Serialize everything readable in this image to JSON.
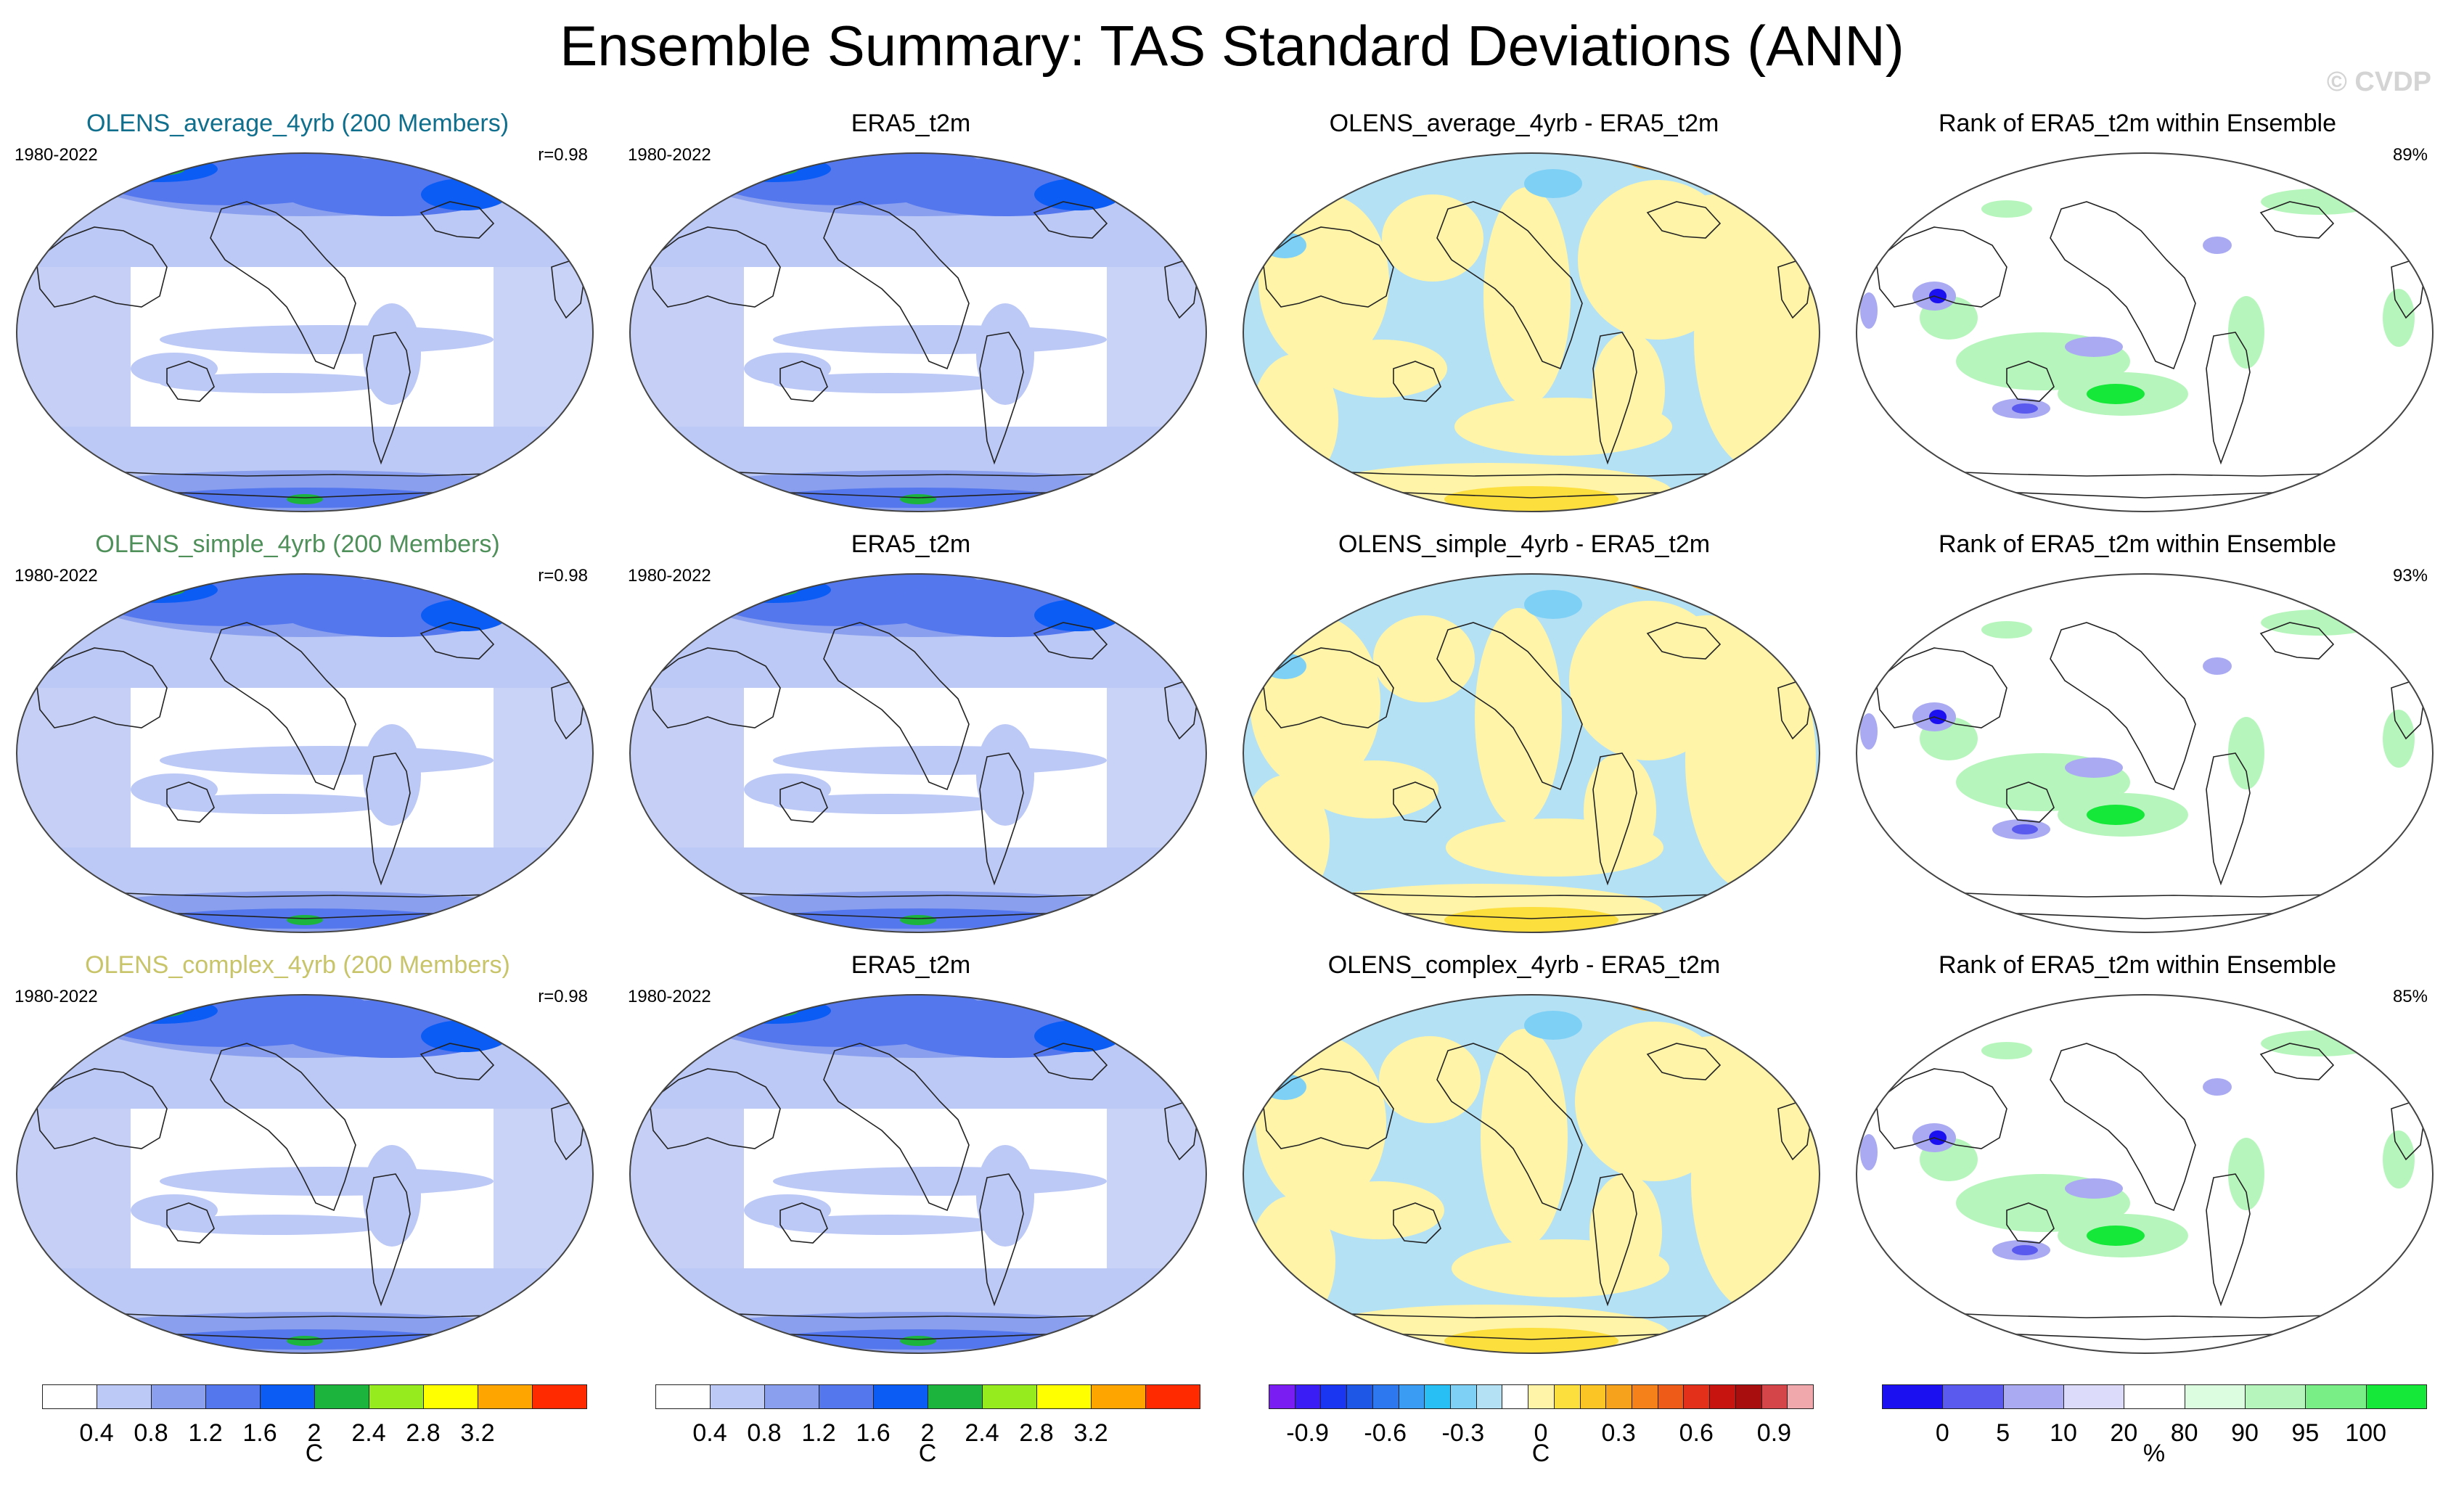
{
  "title": "Ensemble Summary: TAS Standard Deviations (ANN)",
  "watermark": "© CVDP",
  "rows": [
    {
      "label_color": "#106f8c",
      "panels": [
        {
          "kind": "std",
          "title": "OLENS_average_4yrb (200 Members)",
          "left": "1980-2022",
          "right": "r=0.98"
        },
        {
          "kind": "std",
          "title": "ERA5_t2m",
          "left": "1980-2022",
          "right": ""
        },
        {
          "kind": "diff",
          "title": "OLENS_average_4yrb - ERA5_t2m",
          "left": "",
          "right": ""
        },
        {
          "kind": "rank",
          "title": "Rank of ERA5_t2m within Ensemble",
          "left": "",
          "right": "89%"
        }
      ]
    },
    {
      "label_color": "#4f8f5a",
      "panels": [
        {
          "kind": "std",
          "title": "OLENS_simple_4yrb (200 Members)",
          "left": "1980-2022",
          "right": "r=0.98"
        },
        {
          "kind": "std",
          "title": "ERA5_t2m",
          "left": "1980-2022",
          "right": ""
        },
        {
          "kind": "diff",
          "title": "OLENS_simple_4yrb - ERA5_t2m",
          "left": "",
          "right": ""
        },
        {
          "kind": "rank",
          "title": "Rank of ERA5_t2m within Ensemble",
          "left": "",
          "right": "93%"
        }
      ]
    },
    {
      "label_color": "#c8c46a",
      "panels": [
        {
          "kind": "std",
          "title": "OLENS_complex_4yrb (200 Members)",
          "left": "1980-2022",
          "right": "r=0.98"
        },
        {
          "kind": "std",
          "title": "ERA5_t2m",
          "left": "1980-2022",
          "right": ""
        },
        {
          "kind": "diff",
          "title": "OLENS_complex_4yrb - ERA5_t2m",
          "left": "",
          "right": ""
        },
        {
          "kind": "rank",
          "title": "Rank of ERA5_t2m within Ensemble",
          "left": "",
          "right": "85%"
        }
      ]
    }
  ],
  "colorbars": [
    {
      "unit": "C",
      "colors": [
        "#ffffff",
        "#bcc8f5",
        "#8aa0ee",
        "#5577ee",
        "#0a5cf5",
        "#1cb43c",
        "#96eb1e",
        "#ffff00",
        "#ffa500",
        "#ff2a00"
      ],
      "labels": [
        "0.4",
        "0.8",
        "1.2",
        "1.6",
        "2",
        "2.4",
        "2.8",
        "3.2"
      ]
    },
    {
      "unit": "C",
      "colors": [
        "#ffffff",
        "#bcc8f5",
        "#8aa0ee",
        "#5577ee",
        "#0a5cf5",
        "#1cb43c",
        "#96eb1e",
        "#ffff00",
        "#ffa500",
        "#ff2a00"
      ],
      "labels": [
        "0.4",
        "0.8",
        "1.2",
        "1.6",
        "2",
        "2.4",
        "2.8",
        "3.2"
      ]
    },
    {
      "unit": "C",
      "colors": [
        "#7a1df2",
        "#3a1df5",
        "#1a36f0",
        "#1e56e6",
        "#2e78ef",
        "#3a9cf2",
        "#28bff5",
        "#7fd0f5",
        "#b4e1f4",
        "#ffffff",
        "#fff4a8",
        "#fcde3c",
        "#fbc525",
        "#f7a21c",
        "#f4811a",
        "#ee5a18",
        "#e3301a",
        "#c8140f",
        "#a90e0e",
        "#d4454a",
        "#f0a8ad"
      ],
      "labels": [
        "-0.9",
        "-0.6",
        "-0.3",
        "0",
        "0.3",
        "0.6",
        "0.9"
      ]
    },
    {
      "unit": "%",
      "colors": [
        "#1a10f0",
        "#5a5aef",
        "#aaaaf2",
        "#dcdcfa",
        "#ffffff",
        "#ddfde0",
        "#b6f6bc",
        "#7aee86",
        "#15e838"
      ],
      "labels": [
        "0",
        "5",
        "10",
        "20",
        "80",
        "90",
        "95",
        "100"
      ]
    }
  ]
}
